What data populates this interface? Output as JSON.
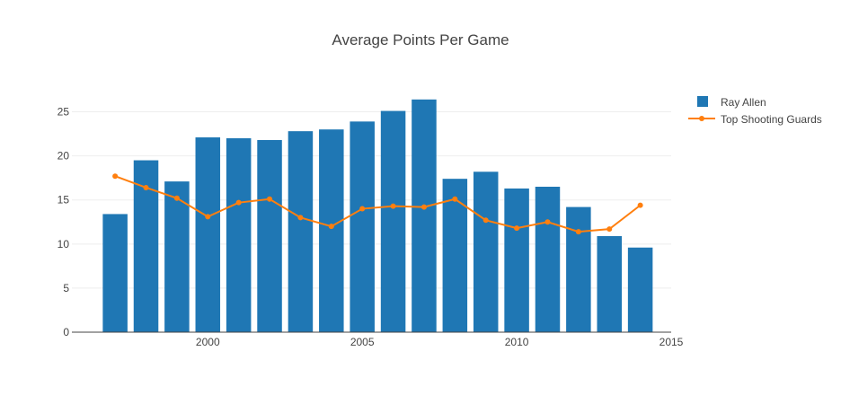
{
  "chart_data": {
    "type": "bar",
    "title": "Average Points Per Game",
    "x": [
      1997,
      1998,
      1999,
      2000,
      2001,
      2002,
      2003,
      2004,
      2005,
      2006,
      2007,
      2008,
      2009,
      2010,
      2011,
      2012,
      2013,
      2014
    ],
    "xlim": [
      1995.6,
      2015
    ],
    "xticks": [
      2000,
      2005,
      2010,
      2015
    ],
    "ylim": [
      0,
      27.5
    ],
    "yticks": [
      0,
      5,
      10,
      15,
      20,
      25
    ],
    "grid": true,
    "legend_position": "top-right",
    "series": [
      {
        "name": "Ray Allen",
        "type": "bar",
        "color": "#1f77b4",
        "values": [
          13.4,
          19.5,
          17.1,
          22.1,
          22.0,
          21.8,
          22.8,
          23.0,
          23.9,
          25.1,
          26.4,
          17.4,
          18.2,
          16.3,
          16.5,
          14.2,
          10.9,
          9.6
        ]
      },
      {
        "name": "Top Shooting Guards",
        "type": "line",
        "color": "#ff7f0e",
        "values": [
          17.7,
          16.4,
          15.2,
          13.1,
          14.7,
          15.1,
          13.0,
          12.0,
          14.0,
          14.3,
          14.2,
          15.1,
          12.7,
          11.8,
          12.5,
          11.4,
          11.7,
          14.4
        ]
      }
    ]
  }
}
